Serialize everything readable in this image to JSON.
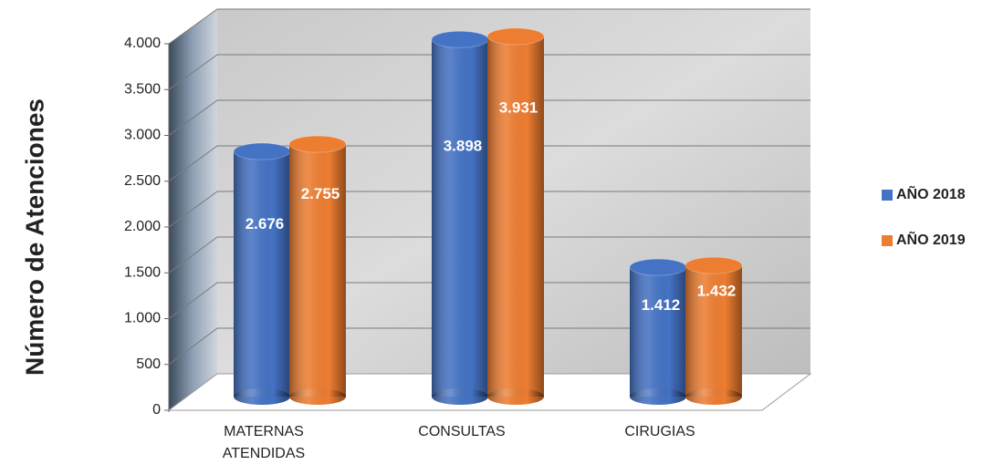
{
  "chart_data": {
    "type": "bar3d",
    "y_axis_label": "Número de Atenciones",
    "categories": [
      "MATERNAS ATENDIDAS",
      "CONSULTAS",
      "CIRUGIAS"
    ],
    "series": [
      {
        "name": "AÑO 2018",
        "color": "#4472c4",
        "values": [
          2676,
          3898,
          1412
        ],
        "value_labels": [
          "2.676",
          "3.898",
          "1.412"
        ]
      },
      {
        "name": "AÑO 2019",
        "color": "#ed7d31",
        "values": [
          2755,
          3931,
          1432
        ],
        "value_labels": [
          "2.755",
          "3.931",
          "1.432"
        ]
      }
    ],
    "ylim": [
      0,
      4000
    ],
    "yticks": [
      0,
      500,
      {
        "value": 1000,
        "label": "1.000"
      },
      {
        "value": 1500,
        "label": "1.500"
      },
      {
        "value": 2000,
        "label": "2.000"
      },
      {
        "value": 2500,
        "label": "2.500"
      },
      {
        "value": 3000,
        "label": "3.000"
      },
      {
        "value": 3500,
        "label": "3.500"
      },
      {
        "value": 4000,
        "label": "4.000"
      }
    ],
    "grid": true,
    "legend": "right"
  }
}
